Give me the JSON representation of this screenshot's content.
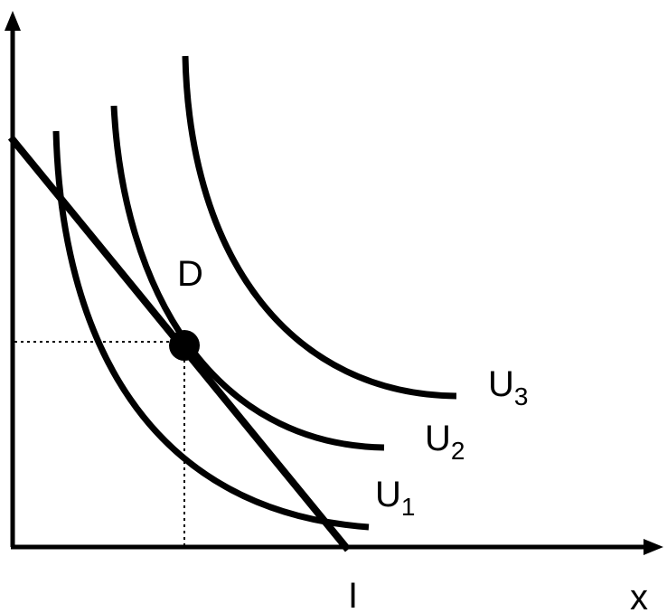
{
  "point": {
    "label": "D"
  },
  "curves": [
    {
      "label": "U",
      "subscript": "1"
    },
    {
      "label": "U",
      "subscript": "2"
    },
    {
      "label": "U",
      "subscript": "3"
    }
  ],
  "axes": {
    "x_intercept_label": "I",
    "x_label": "x"
  }
}
